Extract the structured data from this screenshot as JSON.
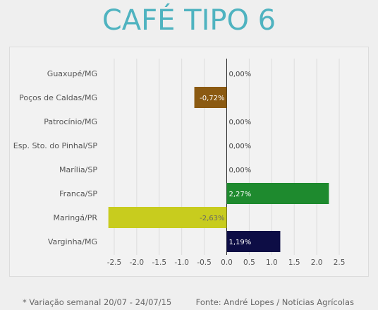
{
  "chart_data": {
    "type": "bar",
    "orientation": "horizontal",
    "title": "CAFÉ TIPO 6",
    "categories": [
      "Guaxupé/MG",
      "Poços de Caldas/MG",
      "Patrocínio/MG",
      "Esp. Sto. do Pinhal/SP",
      "Marília/SP",
      "Franca/SP",
      "Maringá/PR",
      "Varginha/MG"
    ],
    "values": [
      0.0,
      -0.72,
      0.0,
      0.0,
      0.0,
      2.27,
      -2.63,
      1.19
    ],
    "value_labels": [
      "0,00%",
      "-0,72%",
      "0,00%",
      "0,00%",
      "0,00%",
      "2,27%",
      "-2,63%",
      "1,19%"
    ],
    "colors": [
      "#cccccc",
      "#8b5a12",
      "#cccccc",
      "#cccccc",
      "#cccccc",
      "#1e8a2e",
      "#c8cc1e",
      "#0d0d45"
    ],
    "xlim": [
      -2.75,
      2.75
    ],
    "xticks": [
      -2.5,
      -2.0,
      -1.5,
      -1.0,
      -0.5,
      0.0,
      0.5,
      1.0,
      1.5,
      2.0,
      2.5
    ],
    "xtick_labels": [
      "-2.5",
      "-2.0",
      "-1.5",
      "-1.0",
      "-0.5",
      "0.0",
      "0.5",
      "1.0",
      "1.5",
      "2.0",
      "2.5"
    ],
    "grid": "vertical",
    "legend": "none"
  },
  "footer": {
    "note": "* Variação semanal 20/07 - 24/07/15",
    "source": "Fonte: André Lopes / Notícias Agrícolas"
  }
}
